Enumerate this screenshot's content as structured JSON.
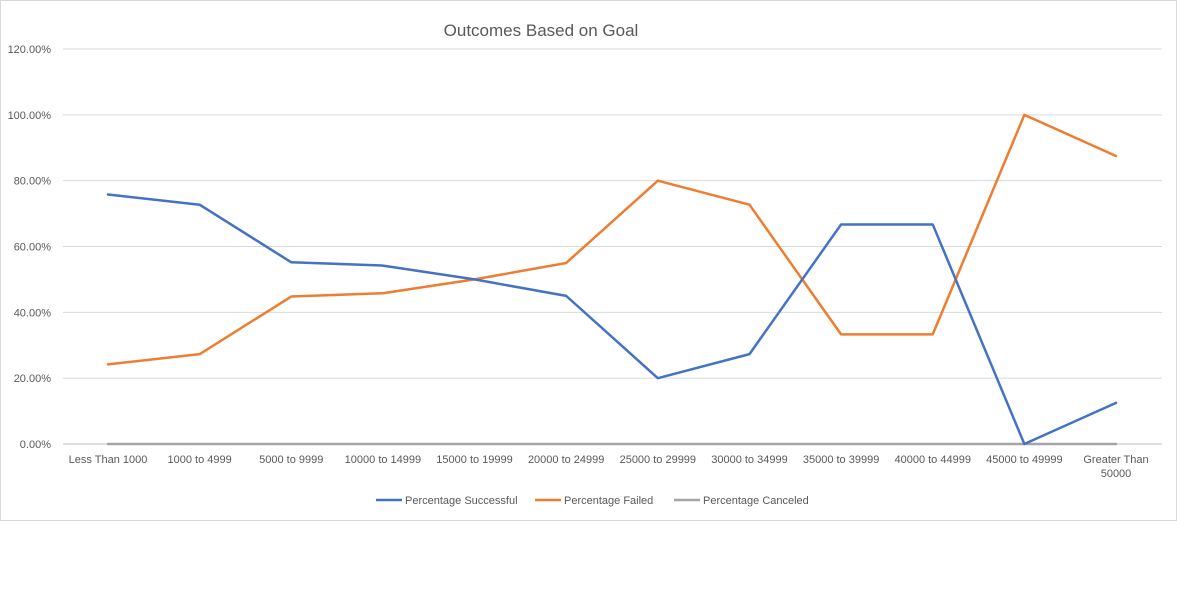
{
  "chart_data": {
    "type": "line",
    "title": "Outcomes Based on Goal",
    "xlabel": "",
    "ylabel": "",
    "categories": [
      "Less Than 1000",
      "1000 to 4999",
      "5000 to 9999",
      "10000 to 14999",
      "15000 to 19999",
      "20000 to 24999",
      "25000 to 29999",
      "30000 to 34999",
      "35000 to 39999",
      "40000 to 44999",
      "45000 to 49999",
      "Greater Than 50000"
    ],
    "ylim": [
      0,
      1.2
    ],
    "y_ticks": [
      0,
      0.2,
      0.4,
      0.6,
      0.8,
      1.0,
      1.2
    ],
    "y_tick_labels": [
      "0.00%",
      "20.00%",
      "40.00%",
      "60.00%",
      "80.00%",
      "100.00%",
      "120.00%"
    ],
    "grid": true,
    "legend_position": "bottom",
    "series": [
      {
        "name": "Percentage Successful",
        "color": "#4472c4",
        "values": [
          0.758,
          0.727,
          0.552,
          0.542,
          0.5,
          0.45,
          0.2,
          0.273,
          0.667,
          0.667,
          0.0,
          0.125
        ]
      },
      {
        "name": "Percentage Failed",
        "color": "#ed7d31",
        "values": [
          0.242,
          0.273,
          0.448,
          0.458,
          0.5,
          0.55,
          0.8,
          0.727,
          0.333,
          0.333,
          1.0,
          0.875
        ]
      },
      {
        "name": "Percentage Canceled",
        "color": "#a5a5a5",
        "values": [
          0,
          0,
          0,
          0,
          0,
          0,
          0,
          0,
          0,
          0,
          0,
          0
        ]
      }
    ]
  }
}
